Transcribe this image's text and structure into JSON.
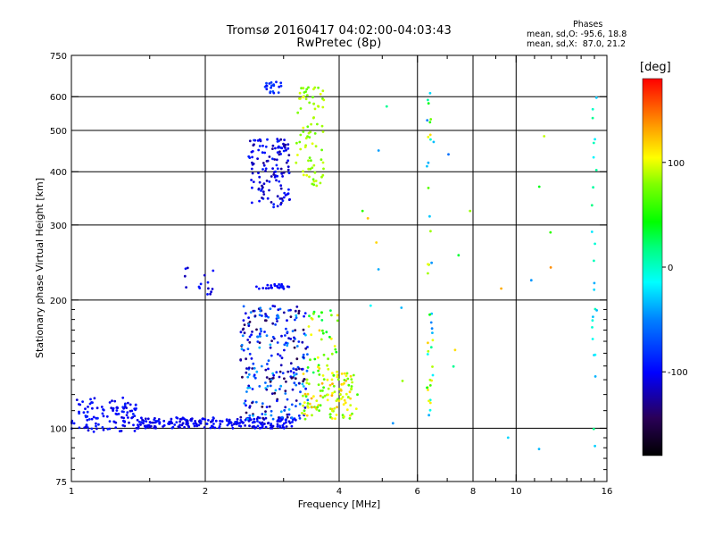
{
  "header": {
    "title_line1": "Tromsø 20160417 04:02:00-04:03:43",
    "title_line2": "RwPretec (8p)"
  },
  "phase_info": {
    "heading": "Phases",
    "line_o": "mean, sd,O: -95.6, 18.8",
    "line_x": "mean, sd,X:  87.0, 21.2"
  },
  "colorbar": {
    "unit": "[deg]",
    "ticks": [
      {
        "value": 100,
        "label": "100"
      },
      {
        "value": 0,
        "label": "0"
      },
      {
        "value": -100,
        "label": "-100"
      }
    ],
    "range": [
      -180,
      180
    ]
  },
  "chart_data": {
    "type": "scatter",
    "title": "Tromsø 20160417 04:02:00-04:03:43",
    "subtitle": "RwPretec (8p)",
    "xlabel": "Frequency [MHz]",
    "ylabel": "Stationary phase Virtual Height [km]",
    "x_scale": "log",
    "y_scale": "log",
    "xlim": [
      1,
      16
    ],
    "ylim": [
      75,
      750
    ],
    "x_ticks": [
      1,
      2,
      4,
      6,
      8,
      10,
      16
    ],
    "x_tick_labels": [
      "1",
      "2",
      "4",
      "6",
      "8",
      "10",
      "16"
    ],
    "y_ticks": [
      75,
      100,
      200,
      300,
      400,
      500,
      600,
      750
    ],
    "y_tick_labels": [
      "75",
      "100",
      "200",
      "300",
      "400",
      "500",
      "600",
      "750"
    ],
    "grid": true,
    "color_by": "phase [deg]",
    "clusters": [
      {
        "x_range": [
          1.0,
          1.4
        ],
        "y_range": [
          98,
          118
        ],
        "phase_range": [
          -115,
          -85
        ],
        "n": 110
      },
      {
        "x_range": [
          1.4,
          3.2
        ],
        "y_range": [
          100,
          106
        ],
        "phase_range": [
          -115,
          -90
        ],
        "n": 220
      },
      {
        "x_range": [
          2.4,
          3.4
        ],
        "y_range": [
          105,
          195
        ],
        "phase_range": [
          -150,
          -30
        ],
        "n": 260
      },
      {
        "x_range": [
          3.3,
          4.4
        ],
        "y_range": [
          105,
          135
        ],
        "phase_range": [
          60,
          130
        ],
        "n": 120
      },
      {
        "x_range": [
          3.4,
          4.0
        ],
        "y_range": [
          135,
          190
        ],
        "phase_range": [
          20,
          120
        ],
        "n": 40
      },
      {
        "x_range": [
          2.5,
          3.1
        ],
        "y_range": [
          330,
          480
        ],
        "phase_range": [
          -130,
          -85
        ],
        "n": 130
      },
      {
        "x_range": [
          3.2,
          3.7
        ],
        "y_range": [
          370,
          640
        ],
        "phase_range": [
          70,
          100
        ],
        "n": 80
      },
      {
        "x_range": [
          2.7,
          3.0
        ],
        "y_range": [
          610,
          650
        ],
        "phase_range": [
          -100,
          -70
        ],
        "n": 20
      },
      {
        "x_range": [
          2.6,
          3.1
        ],
        "y_range": [
          212,
          218
        ],
        "phase_range": [
          -110,
          -90
        ],
        "n": 25
      },
      {
        "x_range": [
          1.8,
          2.1
        ],
        "y_range": [
          205,
          240
        ],
        "phase_range": [
          -120,
          -90
        ],
        "n": 15
      },
      {
        "x_range": [
          6.3,
          6.5
        ],
        "y_range": [
          90,
          640
        ],
        "phase_range": [
          -60,
          120
        ],
        "n": 40
      },
      {
        "x_range": [
          14.8,
          15.2
        ],
        "y_range": [
          90,
          600
        ],
        "phase_range": [
          -40,
          20
        ],
        "n": 25
      },
      {
        "x_range": [
          4.5,
          13.0
        ],
        "y_range": [
          80,
          640
        ],
        "phase_range": [
          -120,
          140
        ],
        "n": 25
      }
    ]
  }
}
